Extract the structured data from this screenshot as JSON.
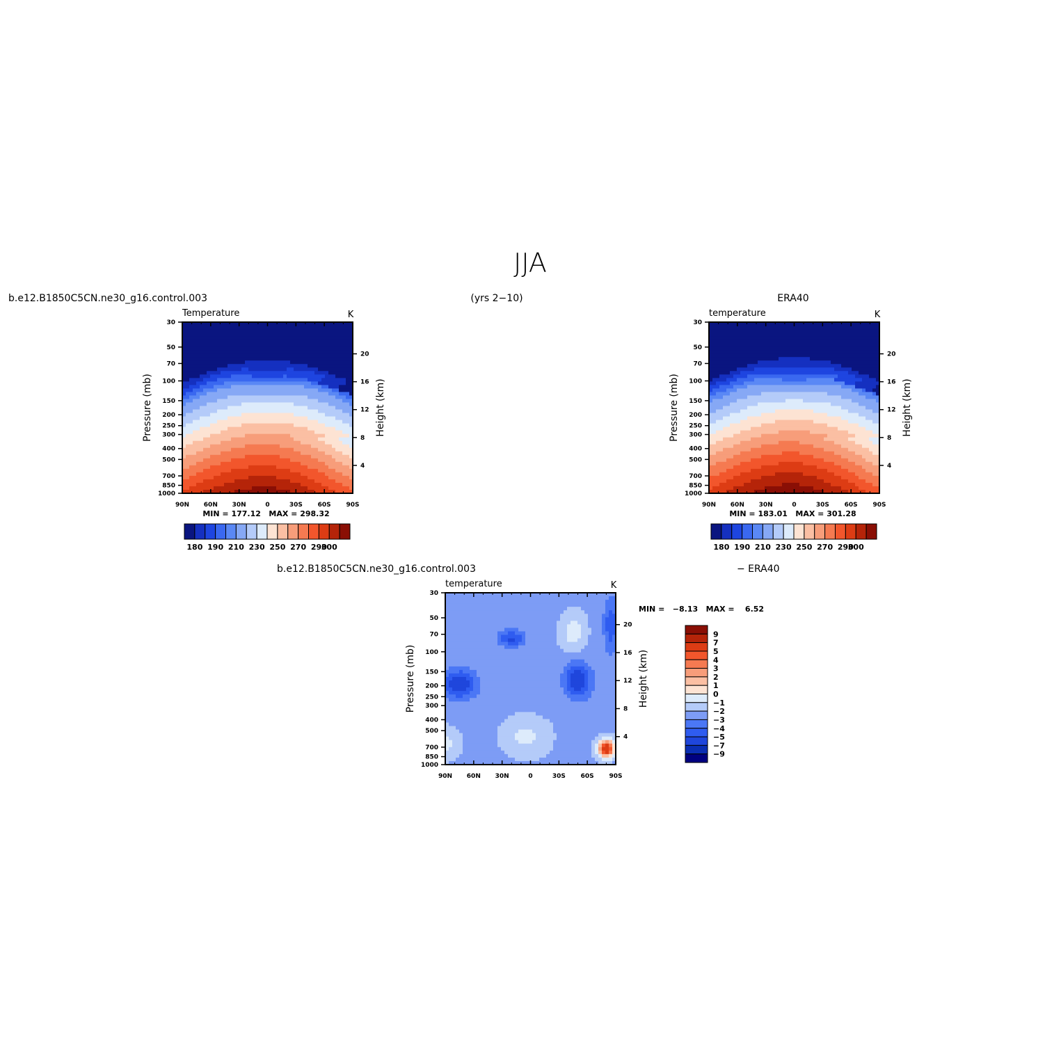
{
  "figure": {
    "title": "JJA",
    "case_label": "b.e12.B1850C5CN.ne30_g16.control.003",
    "years_label": "(yrs 2−10)",
    "obs_label": "ERA40",
    "diff_case_label": "b.e12.B1850C5CN.ne30_g16.control.003",
    "diff_obs_label": "− ERA40"
  },
  "colors": {
    "abs_scale": [
      "#0a1580",
      "#1530c0",
      "#1e45e0",
      "#3a68f0",
      "#5a88f5",
      "#86a8f5",
      "#b4cbf9",
      "#ddebfb",
      "#fde3d3",
      "#fbbfa3",
      "#f79d7a",
      "#f57a51",
      "#f2562c",
      "#dd3c14",
      "#b52409",
      "#8a0f05"
    ],
    "diff_scale": [
      "#000080",
      "#0a2eb3",
      "#1f46dc",
      "#2f5cf0",
      "#4b77f5",
      "#7d9cf5",
      "#b4cbf9",
      "#ddebfb",
      "#fde3d3",
      "#fbbfa3",
      "#f79d7a",
      "#f57a51",
      "#f2562c",
      "#dd3c14",
      "#b52409",
      "#8a0f05"
    ]
  },
  "chart_data": [
    {
      "type": "heatmap",
      "id": "model",
      "title": "Temperature",
      "units": "K",
      "ylabel": "Pressure (mb)",
      "ylabel_right": "Height (km)",
      "x_ticks": [
        "90N",
        "60N",
        "30N",
        "0",
        "30S",
        "60S",
        "90S"
      ],
      "x_values": [
        90,
        60,
        30,
        0,
        -30,
        -60,
        -90
      ],
      "y_ticks": [
        30,
        50,
        70,
        100,
        150,
        200,
        250,
        300,
        400,
        500,
        700,
        850,
        1000
      ],
      "y_scale": "log",
      "ylim": [
        30,
        1000
      ],
      "height_ticks": [
        4,
        8,
        12,
        16,
        20
      ],
      "stats": "MIN = 177.12   MAX = 298.32",
      "levels": [
        180,
        185,
        190,
        195,
        200,
        210,
        220,
        230,
        240,
        250,
        260,
        270,
        280,
        290,
        300
      ],
      "colorbar_labels": [
        "180",
        "190",
        "210",
        "230",
        "250",
        "270",
        "290",
        "300"
      ],
      "grid": false
    },
    {
      "type": "heatmap",
      "id": "obs",
      "title": "temperature",
      "units": "K",
      "ylabel": "Pressure (mb)",
      "ylabel_right": "Height (km)",
      "x_ticks": [
        "90N",
        "60N",
        "30N",
        "0",
        "30S",
        "60S",
        "90S"
      ],
      "x_values": [
        90,
        60,
        30,
        0,
        -30,
        -60,
        -90
      ],
      "y_ticks": [
        30,
        50,
        70,
        100,
        150,
        200,
        250,
        300,
        400,
        500,
        700,
        850,
        1000
      ],
      "y_scale": "log",
      "ylim": [
        30,
        1000
      ],
      "height_ticks": [
        4,
        8,
        12,
        16,
        20
      ],
      "stats": "MIN = 183.01   MAX = 301.28",
      "levels": [
        180,
        185,
        190,
        195,
        200,
        210,
        220,
        230,
        240,
        250,
        260,
        270,
        280,
        290,
        300
      ],
      "colorbar_labels": [
        "180",
        "190",
        "210",
        "230",
        "250",
        "270",
        "290",
        "300"
      ],
      "grid": false
    },
    {
      "type": "heatmap",
      "id": "diff",
      "title": "temperature",
      "units": "K",
      "ylabel": "Pressure (mb)",
      "ylabel_right": "Height (km)",
      "x_ticks": [
        "90N",
        "60N",
        "30N",
        "0",
        "30S",
        "60S",
        "90S"
      ],
      "x_values": [
        90,
        60,
        30,
        0,
        -30,
        -60,
        -90
      ],
      "y_ticks": [
        30,
        50,
        70,
        100,
        150,
        200,
        250,
        300,
        400,
        500,
        700,
        850,
        1000
      ],
      "y_scale": "log",
      "ylim": [
        30,
        1000
      ],
      "height_ticks": [
        4,
        8,
        12,
        16,
        20
      ],
      "stats": "MIN =   −8.13   MAX =    6.52",
      "levels": [
        -9,
        -7,
        -5,
        -4,
        -3,
        -2,
        -1,
        0,
        1,
        2,
        3,
        4,
        5,
        7,
        9
      ],
      "colorbar_labels": [
        "9",
        "7",
        "5",
        "4",
        "3",
        "2",
        "1",
        "0",
        "−1",
        "−2",
        "−3",
        "−4",
        "−5",
        "−7",
        "−9"
      ],
      "grid": false
    }
  ]
}
